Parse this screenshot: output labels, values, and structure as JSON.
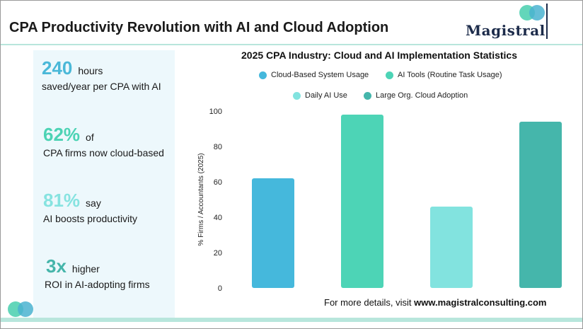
{
  "header": {
    "title": "CPA Productivity Revolution with AI and Cloud Adoption",
    "logo_text": "Magistral"
  },
  "stats": [
    {
      "number": "240",
      "unit": "hours",
      "desc": "saved/year per CPA with AI",
      "color": "#4ab8d8"
    },
    {
      "number": "62%",
      "unit": "of",
      "desc": "CPA firms now cloud-based",
      "color": "#4cd3b4"
    },
    {
      "number": "81%",
      "unit": "say",
      "desc": "AI boosts productivity",
      "color": "#86e3e0"
    },
    {
      "number": "3x",
      "unit": "higher",
      "desc": "ROI in AI-adopting firms",
      "color": "#45b5aa"
    }
  ],
  "footer": {
    "prefix": "For more details, visit ",
    "link": "www.magistralconsulting.com"
  },
  "chart_data": {
    "type": "bar",
    "title": "2025 CPA Industry: Cloud and AI Implementation Statistics",
    "ylabel": "% Firms / Accountants (2025)",
    "xlabel": "",
    "ylim": [
      0,
      100
    ],
    "yticks": [
      0,
      20,
      40,
      60,
      80,
      100
    ],
    "grid": false,
    "legend_position": "top",
    "categories": [
      "Cloud-Based System Usage",
      "AI Tools (Routine Task Usage)",
      "Daily AI Use",
      "Large Org. Cloud Adoption"
    ],
    "values": [
      62,
      98,
      46,
      94
    ],
    "colors": [
      "#45b8dc",
      "#4dd4b6",
      "#82e3df",
      "#45b6ab"
    ]
  }
}
